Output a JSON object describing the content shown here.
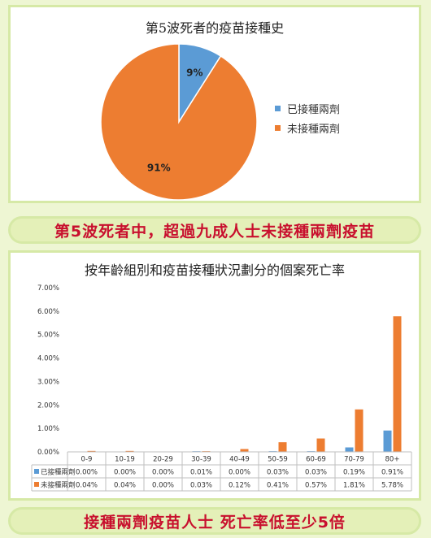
{
  "pie": {
    "title": "第5波死者的疫苗接種史",
    "slices": [
      {
        "label": "已接種兩劑",
        "value": 9,
        "text": "9%",
        "color": "#5b9bd5"
      },
      {
        "label": "未接種兩劑",
        "value": 91,
        "text": "91%",
        "color": "#ed7d31"
      }
    ]
  },
  "banner1": "第5波死者中，超過九成人士未接種兩劑疫苗",
  "banner2": "接種兩劑疫苗人士 死亡率低至少5倍",
  "chart_data": [
    {
      "type": "pie",
      "title": "第5波死者的疫苗接種史",
      "categories": [
        "已接種兩劑",
        "未接種兩劑"
      ],
      "values": [
        9,
        91
      ],
      "legend": "right"
    },
    {
      "type": "bar",
      "title": "按年齡組別和疫苗接種狀況劃分的個案死亡率",
      "categories": [
        "0-9",
        "10-19",
        "20-29",
        "30-39",
        "40-49",
        "50-59",
        "60-69",
        "70-79",
        "80+"
      ],
      "series": [
        {
          "name": "已接種兩劑",
          "color": "#5b9bd5",
          "values": [
            0.0,
            0.0,
            0.0,
            0.01,
            0.0,
            0.03,
            0.03,
            0.19,
            0.91
          ],
          "labels": [
            "0.00%",
            "0.00%",
            "0.00%",
            "0.01%",
            "0.00%",
            "0.03%",
            "0.03%",
            "0.19%",
            "0.91%"
          ]
        },
        {
          "name": "未接種兩劑",
          "color": "#ed7d31",
          "values": [
            0.04,
            0.04,
            0.0,
            0.03,
            0.12,
            0.41,
            0.57,
            1.81,
            5.78
          ],
          "labels": [
            "0.04%",
            "0.04%",
            "0.00%",
            "0.03%",
            "0.12%",
            "0.41%",
            "0.57%",
            "1.81%",
            "5.78%"
          ]
        }
      ],
      "ylim": [
        0,
        7
      ],
      "yticks": [
        "0.00%",
        "1.00%",
        "2.00%",
        "3.00%",
        "4.00%",
        "5.00%",
        "6.00%",
        "7.00%"
      ],
      "legend": "data-table",
      "grid": false
    }
  ]
}
